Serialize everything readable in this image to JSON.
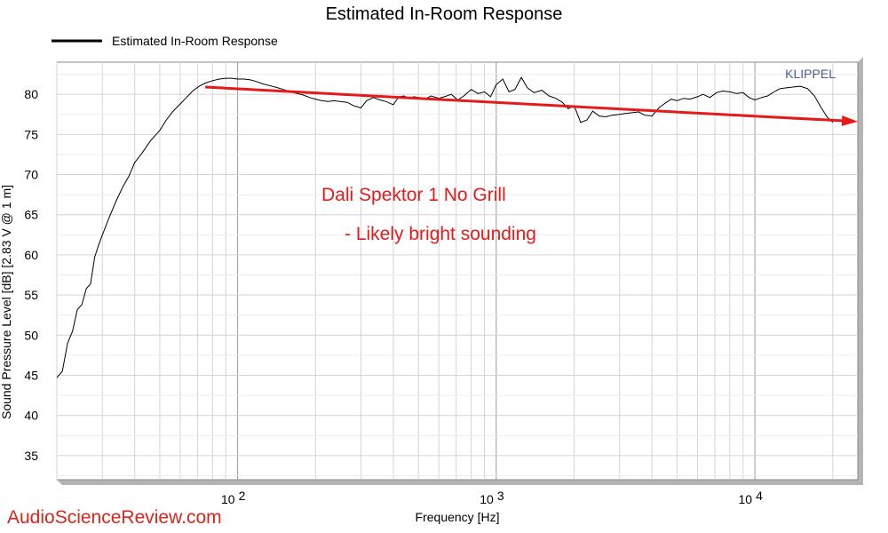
{
  "chart_data": {
    "type": "line",
    "title": "Estimated In-Room Response",
    "xlabel": "Frequency [Hz]",
    "ylabel": "Sound Pressure Level [dB]  [2.83  V @ 1  m]",
    "x_scale": "log",
    "xlim": [
      20,
      25000
    ],
    "ylim": [
      32,
      84
    ],
    "y_ticks": [
      35,
      40,
      45,
      50,
      55,
      60,
      65,
      70,
      75,
      80
    ],
    "x_tick_labels": [
      {
        "value": 100,
        "base": "10",
        "exp": "2"
      },
      {
        "value": 1000,
        "base": "10",
        "exp": "3"
      },
      {
        "value": 10000,
        "base": "10",
        "exp": "4"
      }
    ],
    "grid": true,
    "legend_position": "top-left",
    "brand_label": "KLIPPEL",
    "series": [
      {
        "name": "Estimated In-Room Response",
        "color": "#000000",
        "x": [
          20,
          21,
          22,
          23,
          24,
          25,
          26,
          27,
          28,
          29,
          30,
          32,
          34,
          36,
          38,
          40,
          43,
          46,
          50,
          53,
          56,
          60,
          63,
          67,
          71,
          75,
          80,
          85,
          90,
          95,
          100,
          106,
          112,
          118,
          125,
          132,
          140,
          150,
          160,
          170,
          180,
          190,
          200,
          212,
          224,
          236,
          250,
          265,
          280,
          300,
          315,
          335,
          355,
          375,
          400,
          420,
          440,
          460,
          480,
          500,
          530,
          560,
          600,
          630,
          670,
          710,
          750,
          800,
          850,
          900,
          950,
          1000,
          1060,
          1120,
          1180,
          1250,
          1320,
          1400,
          1500,
          1600,
          1700,
          1800,
          1900,
          2000,
          2120,
          2240,
          2360,
          2500,
          2650,
          2800,
          3000,
          3150,
          3350,
          3550,
          3750,
          4000,
          4250,
          4500,
          4750,
          5000,
          5300,
          5600,
          6000,
          6300,
          6700,
          7100,
          7500,
          8000,
          8500,
          9000,
          9500,
          10000,
          10600,
          11200,
          12000,
          12500,
          13200,
          14000,
          15000,
          16000,
          17000,
          18000,
          19000,
          20000
        ],
        "values": [
          44.7,
          45.5,
          49,
          50.5,
          53.2,
          53.8,
          55.8,
          56.4,
          59.7,
          61.2,
          62.5,
          64.8,
          66.8,
          68.5,
          69.8,
          71.5,
          72.8,
          74.2,
          75.5,
          76.8,
          77.8,
          78.8,
          79.5,
          80.4,
          81,
          81.4,
          81.7,
          81.9,
          82,
          82,
          81.9,
          81.9,
          81.8,
          81.6,
          81.3,
          81.1,
          80.9,
          80.6,
          80.3,
          80.1,
          79.9,
          79.6,
          79.4,
          79.2,
          79.1,
          79.2,
          79.1,
          79,
          78.6,
          78.3,
          79.2,
          79.6,
          79.3,
          79.1,
          78.7,
          79.7,
          79.8,
          79.5,
          79.7,
          79.6,
          79.4,
          79.8,
          79.5,
          79.7,
          80,
          79.3,
          79.8,
          80.6,
          80.1,
          80.3,
          79.7,
          81.2,
          81.9,
          80.3,
          80.6,
          82.1,
          80.8,
          80.2,
          80.5,
          79.8,
          79.5,
          79,
          78.2,
          78.6,
          76.5,
          76.8,
          77.9,
          77.3,
          77.2,
          77.4,
          77.5,
          77.6,
          77.7,
          77.8,
          77.4,
          77.3,
          78.3,
          78.9,
          79.4,
          79.2,
          79.5,
          79.4,
          79.7,
          80,
          79.6,
          80.2,
          80.4,
          80.3,
          80.1,
          80.2,
          79.6,
          79.3,
          79.6,
          79.8,
          80.4,
          80.7,
          80.8,
          80.9,
          81,
          80.7,
          79.8,
          78.4,
          77.2,
          76.5
        ]
      }
    ],
    "trend_line": {
      "color": "#e31b1b",
      "x": [
        75,
        25000
      ],
      "values": [
        80.9,
        76.6
      ]
    },
    "annotations": [
      {
        "text": "Dali Spektor 1 No Grill",
        "color": "#e31b1b"
      },
      {
        "text": "- Likely bright sounding",
        "color": "#e31b1b"
      }
    ],
    "watermark": {
      "text": "AudioScienceReview.com",
      "color": "#d9261c"
    }
  }
}
